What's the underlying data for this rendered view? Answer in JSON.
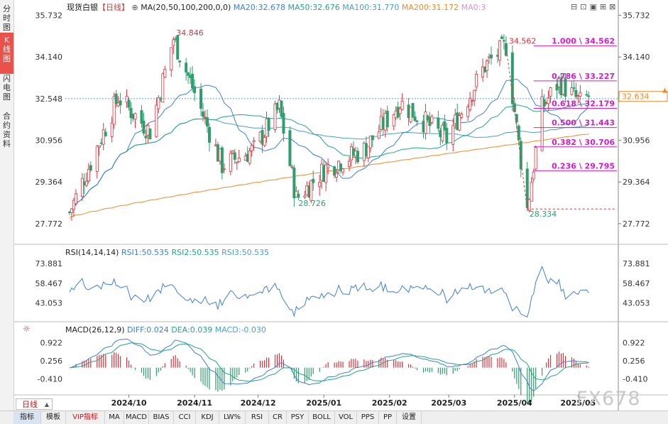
{
  "sidebar": {
    "tabs": [
      {
        "label": "分时图",
        "active": false
      },
      {
        "label": "K线图",
        "active": true
      },
      {
        "label": "闪电图",
        "active": false
      },
      {
        "label": "合约资料",
        "active": false
      }
    ]
  },
  "header": {
    "instrument": "现货白银",
    "period_tag": "【日线】",
    "ma_label": "MA(20,50,100,200,0,0)",
    "ma_values": [
      {
        "text": "MA20:32.678",
        "color": "#3d7fd6"
      },
      {
        "text": "MA50:32.676",
        "color": "#1fa58a"
      },
      {
        "text": "MA100:31.770",
        "color": "#4b9fc8"
      },
      {
        "text": "MA200:31.172",
        "color": "#f08a24"
      },
      {
        "text": "MA0:3",
        "color": "#e58ad6"
      }
    ],
    "tool_icons": [
      "minimize-icon",
      "restore-icon",
      "window-icon",
      "maximize-icon",
      "close-icon"
    ]
  },
  "price_axis": {
    "ticks": [
      35.732,
      34.14,
      32.548,
      30.956,
      29.364,
      27.772
    ],
    "tick_labels": [
      "35.732",
      "34.140",
      "32.548",
      "30.956",
      "29.364",
      "27.772"
    ],
    "current_price": "32.634",
    "right_hidden_label": "32.548"
  },
  "annotations": {
    "high1": "34.846",
    "high2": "34.562",
    "low1": "28.726",
    "low2": "28.334"
  },
  "fibonacci": [
    {
      "label": "1.000 \\ 34.562",
      "price": 34.562
    },
    {
      "label": "0.786 \\ 33.227",
      "price": 33.227
    },
    {
      "label": "0.618 \\ 32.179",
      "price": 32.179
    },
    {
      "label": "0.500 \\ 31.443",
      "price": 31.443
    },
    {
      "label": "0.382 \\ 30.706",
      "price": 30.706
    },
    {
      "label": "0.236 \\ 29.795",
      "price": 29.795
    }
  ],
  "rsi": {
    "title": "RSI(14,14,14)",
    "values_text": [
      {
        "text": "RSI1:50.535",
        "color": "#3d7fd6"
      },
      {
        "text": "RSI2:50.535",
        "color": "#1fa58a"
      },
      {
        "text": "RSI3:50.535",
        "color": "#4b9fc8"
      }
    ],
    "ticks": [
      "73.881",
      "58.467",
      "43.053"
    ]
  },
  "macd": {
    "title": "MACD(26,12,9)",
    "values_text": [
      {
        "text": "DIFF:0.024",
        "color": "#3d7fd6"
      },
      {
        "text": "DEA:0.039",
        "color": "#1fa58a"
      },
      {
        "text": "MACD:-0.030",
        "color": "#4b9fc8"
      }
    ],
    "ticks": [
      "0.922",
      "0.256",
      "-0.410"
    ]
  },
  "x_axis": {
    "labels": [
      "2024/10",
      "2024/11",
      "2024/12",
      "2025/01",
      "2025/02",
      "2025/03",
      "2025/04",
      "2025/05"
    ]
  },
  "period_selector": "日线",
  "bottom_toolbar": [
    "指标",
    "模板",
    "VIP指标",
    "MA",
    "MACD",
    "BIAS",
    "CCI",
    "KDJ",
    "LW%",
    "RSI",
    "CR",
    "PSY",
    "BOLL",
    "VOL",
    "PPS",
    "PP",
    "设置"
  ],
  "watermark": "FX678",
  "colors": {
    "up": "#e0323a",
    "down": "#2e9e6c",
    "fib": "#d020c8",
    "ma20": "#3d7fd6",
    "ma50": "#1fa58a",
    "ma100": "#4b9fc8",
    "ma200": "#f08a24"
  },
  "chart_data": {
    "type": "candlestick",
    "title": "现货白银 【日线】",
    "ylim": [
      27.2,
      36.1
    ],
    "key_points": [
      {
        "date": "2024-09-03",
        "price": 28.2
      },
      {
        "date": "2024-09-26",
        "price": 32.6
      },
      {
        "date": "2024-10-11",
        "price": 31.3
      },
      {
        "date": "2024-10-22",
        "price": 34.846
      },
      {
        "date": "2024-10-30",
        "price": 33.2
      },
      {
        "date": "2024-11-14",
        "price": 30.0
      },
      {
        "date": "2024-11-29",
        "price": 30.6
      },
      {
        "date": "2024-12-11",
        "price": 32.2
      },
      {
        "date": "2024-12-19",
        "price": 28.726
      },
      {
        "date": "2025-01-02",
        "price": 29.9
      },
      {
        "date": "2025-01-20",
        "price": 30.6
      },
      {
        "date": "2025-02-06",
        "price": 32.4
      },
      {
        "date": "2025-02-28",
        "price": 31.0
      },
      {
        "date": "2025-03-18",
        "price": 33.8
      },
      {
        "date": "2025-03-28",
        "price": 34.562
      },
      {
        "date": "2025-04-07",
        "price": 28.334
      },
      {
        "date": "2025-04-14",
        "price": 32.2
      },
      {
        "date": "2025-04-22",
        "price": 33.2
      },
      {
        "date": "2025-05-02",
        "price": 32.4
      },
      {
        "date": "2025-05-06",
        "price": 32.634
      }
    ],
    "moving_averages": [
      {
        "name": "MA20",
        "last": 32.678
      },
      {
        "name": "MA50",
        "last": 32.676
      },
      {
        "name": "MA100",
        "last": 31.77
      },
      {
        "name": "MA200",
        "last": 31.172
      }
    ],
    "rsi_range": [
      30,
      80
    ],
    "rsi_last": 50.535,
    "macd_range": [
      -0.9,
      1.25
    ],
    "macd_last": {
      "diff": 0.024,
      "dea": 0.039,
      "macd": -0.03
    }
  }
}
